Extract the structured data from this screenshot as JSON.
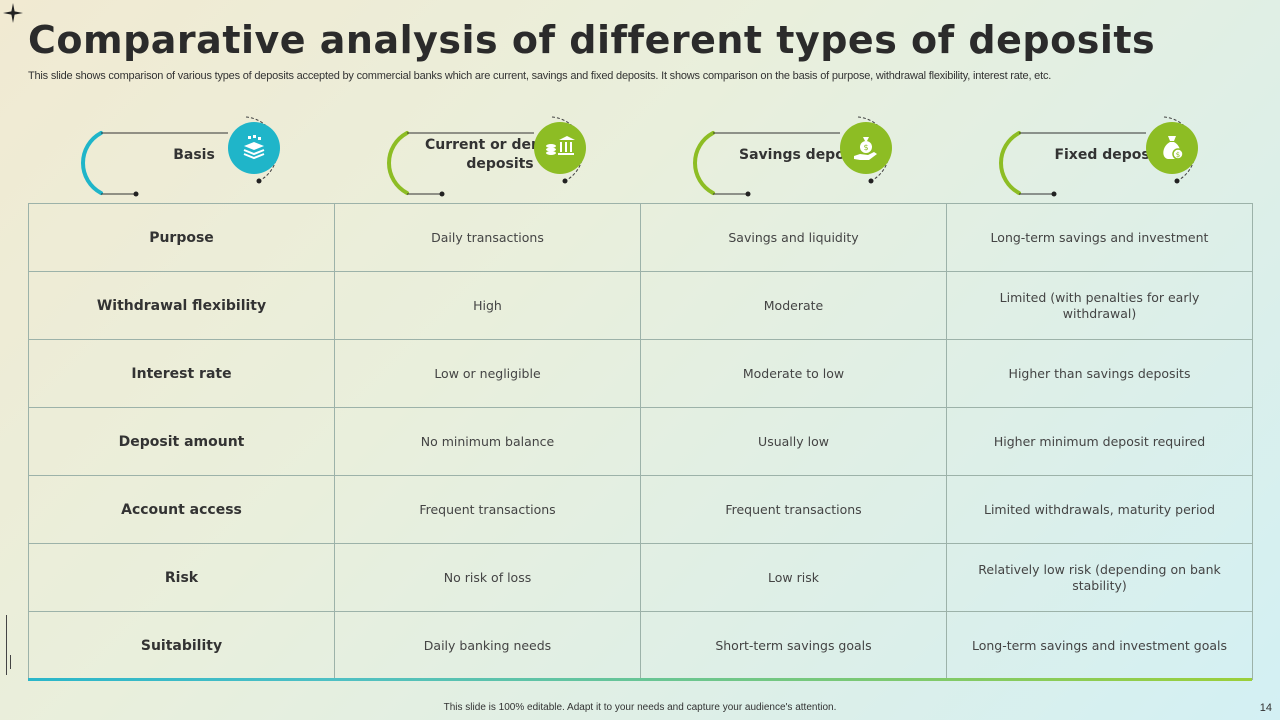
{
  "title": "Comparative analysis of different types of deposits",
  "subtitle": "This slide shows comparison of various types of deposits accepted by commercial banks which are current, savings and fixed deposits. It shows comparison on the basis of purpose, withdrawal flexibility, interest rate, etc.",
  "columns": [
    {
      "label": "Basis",
      "icon": "stack-layers-icon",
      "color": "#1fb5c9"
    },
    {
      "label": "Current or demand deposits",
      "icon": "bank-coins-icon",
      "color": "#8dbd24"
    },
    {
      "label": "Savings deposits",
      "icon": "hand-money-bag-icon",
      "color": "#8dbd24"
    },
    {
      "label": "Fixed deposits",
      "icon": "money-bag-icon",
      "color": "#8dbd24"
    }
  ],
  "rows": [
    {
      "basis": "Purpose",
      "current": "Daily transactions",
      "savings": "Savings  and liquidity",
      "fixed": "Long-term  savings  and investment"
    },
    {
      "basis": "Withdrawal flexibility",
      "current": "High",
      "savings": "Moderate",
      "fixed": "Limited (with penalties for early withdrawal)"
    },
    {
      "basis": "Interest rate",
      "current": "Low  or negligible",
      "savings": "Moderate  to low",
      "fixed": "Higher than savings  deposits"
    },
    {
      "basis": "Deposit amount",
      "current": "No  minimum balance",
      "savings": "Usually low",
      "fixed": "Higher  minimum  deposit required"
    },
    {
      "basis": "Account access",
      "current": "Frequent  transactions",
      "savings": "Frequent  transactions",
      "fixed": "Limited withdrawals,  maturity period"
    },
    {
      "basis": "Risk",
      "current": "No risk of loss",
      "savings": "Low risk",
      "fixed": "Relatively  low risk (depending  on bank stability)"
    },
    {
      "basis": "Suitability",
      "current": "Daily banking needs",
      "savings": "Short-term  savings  goals",
      "fixed": "Long-term  savings  and investment  goals"
    }
  ],
  "footer": "This slide is 100% editable.  Adapt it to your needs and capture your audience's attention.",
  "page_number": "14"
}
